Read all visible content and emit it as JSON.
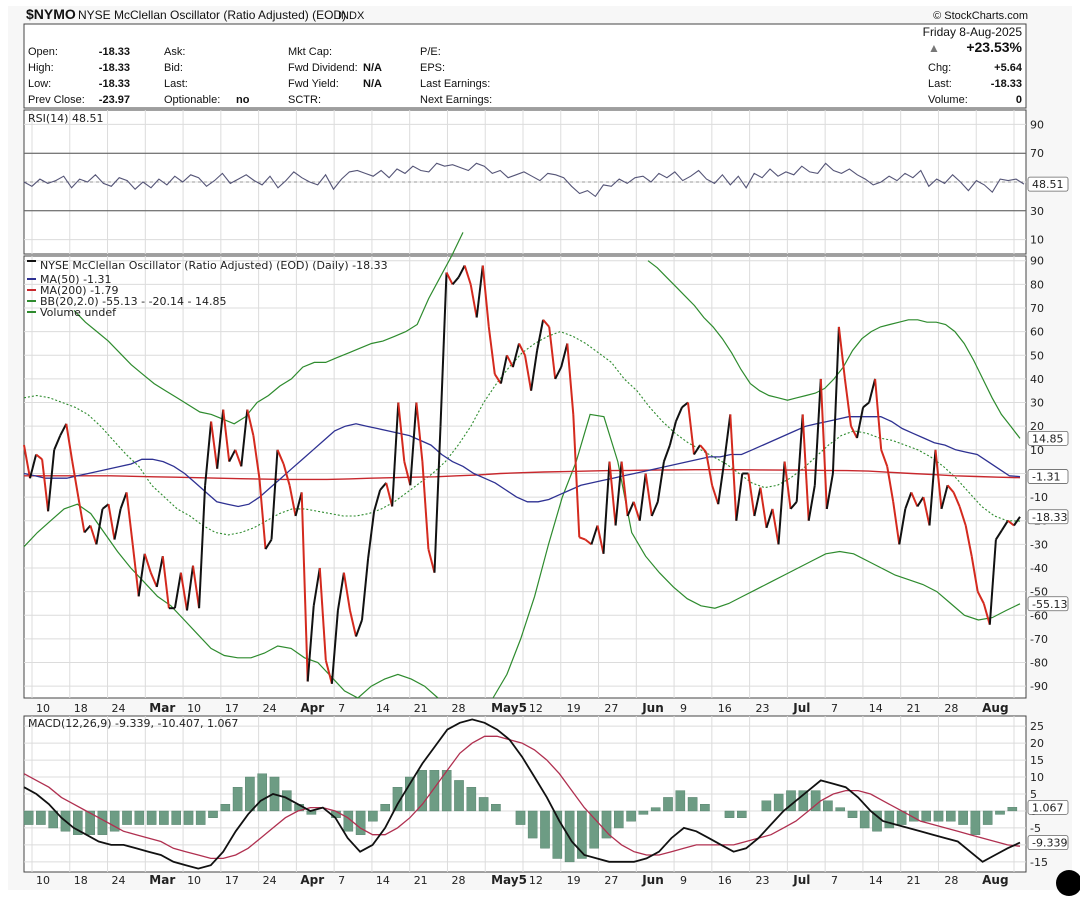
{
  "header": {
    "symbol": "$NYMO",
    "name": "NYSE McClellan Oscillator (Ratio Adjusted) (EOD)",
    "exchange": "INDX",
    "brand": "© StockCharts.com",
    "date": "Friday  8-Aug-2025",
    "change_pct": "+23.53%",
    "quote_left": [
      {
        "label": "Open:",
        "value": "-18.33"
      },
      {
        "label": "High:",
        "value": "-18.33"
      },
      {
        "label": "Low:",
        "value": "-18.33"
      },
      {
        "label": "Prev Close:",
        "value": "-23.97"
      }
    ],
    "quote_mid1": [
      {
        "label": "Ask:",
        "value": ""
      },
      {
        "label": "Bid:",
        "value": ""
      },
      {
        "label": "Last:",
        "value": ""
      },
      {
        "label": "Optionable:",
        "value": "no"
      }
    ],
    "quote_mid2": [
      {
        "label": "Mkt Cap:",
        "value": ""
      },
      {
        "label": "Fwd Dividend:",
        "value": "N/A"
      },
      {
        "label": "Fwd Yield:",
        "value": "N/A"
      },
      {
        "label": "SCTR:",
        "value": ""
      }
    ],
    "quote_mid3": [
      {
        "label": "P/E:",
        "value": ""
      },
      {
        "label": "EPS:",
        "value": ""
      },
      {
        "label": "Last Earnings:",
        "value": ""
      },
      {
        "label": "Next Earnings:",
        "value": ""
      }
    ],
    "quote_right": [
      {
        "label": "Chg:",
        "value": "+5.64"
      },
      {
        "label": "Last:",
        "value": "-18.33"
      },
      {
        "label": "Volume:",
        "value": "0"
      }
    ]
  },
  "colors": {
    "price_up": "#111111",
    "price_down": "#d42a1e",
    "ma50": "#2e3192",
    "ma200": "#c8282d",
    "bb": "#2e8b2e",
    "rsi": "#555577",
    "macd": "#111111",
    "signal": "#b03050",
    "hist": "#6d9c84",
    "grid": "#dcdcdc"
  },
  "chart_data": [
    {
      "type": "line",
      "panel": "RSI",
      "label": "RSI(14) 48.51",
      "last_value_label": "48.51",
      "ylim": [
        0,
        100
      ],
      "ticks": [
        10,
        30,
        50,
        70,
        90
      ],
      "reference_lines": [
        30,
        70
      ],
      "values": [
        50,
        47,
        52,
        49,
        51,
        54,
        46,
        52,
        50,
        55,
        49,
        47,
        53,
        51,
        45,
        50,
        46,
        52,
        48,
        54,
        50,
        55,
        53,
        47,
        51,
        56,
        49,
        52,
        55,
        51,
        48,
        54,
        46,
        51,
        57,
        53,
        50,
        48,
        55,
        45,
        52,
        57,
        58,
        56,
        54,
        58,
        53,
        59,
        56,
        61,
        58,
        57,
        63,
        61,
        62,
        60,
        58,
        63,
        61,
        56,
        58,
        53,
        55,
        57,
        54,
        51,
        56,
        55,
        53,
        47,
        42,
        44,
        40,
        48,
        47,
        52,
        49,
        53,
        54,
        50,
        56,
        53,
        57,
        51,
        54,
        58,
        52,
        49,
        55,
        48,
        54,
        46,
        56,
        53,
        59,
        54,
        57,
        55,
        61,
        57,
        56,
        63,
        58,
        56,
        59,
        55,
        52,
        48,
        50,
        54,
        51,
        56,
        53,
        58,
        47,
        52,
        49,
        55,
        50,
        44,
        51,
        48,
        43,
        52,
        51,
        52,
        48.51
      ]
    },
    {
      "type": "line",
      "panel": "price",
      "label": "NYSE McClellan Oscillator (Ratio Adjusted) (EOD) (Daily) -18.33",
      "legend": [
        {
          "text": "MA(50) -1.31",
          "color": "#2e3192"
        },
        {
          "text": "MA(200) -1.79",
          "color": "#c8282d"
        },
        {
          "text": "BB(20,2.0) -55.13 - -20.14 - 14.85",
          "color": "#2e8b2e"
        },
        {
          "text": "Volume undef",
          "color": "#2e8b2e"
        }
      ],
      "ylim": [
        -95,
        92
      ],
      "ticks": [
        -90,
        -80,
        -70,
        -60,
        -50,
        -40,
        -30,
        -20,
        -10,
        0,
        10,
        20,
        30,
        40,
        50,
        60,
        70,
        80,
        90
      ],
      "x_labels": [
        "10",
        "18",
        "24",
        "Mar",
        "10",
        "17",
        "24",
        "Apr",
        "7",
        "14",
        "21",
        "28",
        "May5",
        "12",
        "19",
        "27",
        "Jun",
        "9",
        "16",
        "23",
        "Jul",
        "7",
        "14",
        "21",
        "28",
        "Aug"
      ],
      "right_labels": [
        {
          "text": "14.85",
          "value": 14.85
        },
        {
          "text": "-1.31",
          "value": -1.31
        },
        {
          "text": "-18.33",
          "value": -18.33
        },
        {
          "text": "-55.13",
          "value": -55.13
        }
      ],
      "series": [
        {
          "name": "NYSE McClellan Oscillator (Ratio Adjusted) (EOD)",
          "values": [
            12,
            -2,
            8,
            6,
            -16,
            10,
            16,
            21,
            5,
            -10,
            -25,
            -22,
            -30,
            -15,
            -13,
            -28,
            -15,
            -8,
            -30,
            -52,
            -34,
            -42,
            -48,
            -35,
            -57,
            -57,
            -42,
            -58,
            -39,
            -57,
            -5,
            22,
            2,
            27,
            5,
            10,
            3,
            27,
            16,
            -2,
            -32,
            -28,
            10,
            4,
            -5,
            -18,
            -8,
            -88,
            -56,
            -40,
            -79,
            -89,
            -58,
            -42,
            -58,
            -69,
            -62,
            -36,
            -16,
            -7,
            -4,
            -14,
            30,
            5,
            -5,
            30,
            5,
            -32,
            -42,
            20,
            85,
            80,
            83,
            88,
            80,
            66,
            88,
            62,
            42,
            38,
            50,
            45,
            55,
            50,
            35,
            52,
            65,
            62,
            40,
            45,
            55,
            25,
            -27,
            -28,
            -30,
            -22,
            -34,
            5,
            -22,
            5,
            -18,
            -12,
            -20,
            0,
            -18,
            -12,
            5,
            12,
            22,
            28,
            30,
            8,
            12,
            9,
            -5,
            -13,
            5,
            25,
            -20,
            0,
            0,
            -18,
            -6,
            -23,
            -15,
            -30,
            5,
            -15,
            -12,
            25,
            -20,
            -5,
            40,
            -15,
            0,
            62,
            40,
            20,
            15,
            28,
            30,
            40,
            10,
            3,
            -12,
            -30,
            -15,
            -8,
            -14,
            -10,
            -22,
            10,
            -15,
            -5,
            -8,
            -14,
            -22,
            -35,
            -50,
            -55,
            -64,
            -28,
            -24,
            -20,
            -22,
            -18.33
          ]
        },
        {
          "name": "MA(50)",
          "values": [
            0,
            -1,
            -2,
            -2,
            -2,
            -1,
            0,
            1,
            2,
            3,
            4,
            6,
            6,
            5,
            3,
            0,
            -4,
            -8,
            -12,
            -13,
            -14,
            -13,
            -10,
            -6,
            -2,
            2,
            6,
            10,
            14,
            18,
            20,
            21,
            20,
            19,
            18,
            17,
            16,
            14,
            12,
            8,
            5,
            3,
            0,
            -2,
            -4,
            -7,
            -10,
            -12,
            -12,
            -11,
            -9,
            -7,
            -5,
            -4,
            -3,
            -2,
            -1,
            0,
            1,
            2,
            3,
            4,
            5,
            6,
            7,
            7,
            8,
            8,
            10,
            12,
            14,
            16,
            18,
            20,
            21,
            22,
            23,
            24,
            24,
            24,
            24,
            22,
            19,
            17,
            15,
            13,
            12,
            10,
            9,
            8,
            5,
            2,
            -1,
            -1.31
          ]
        },
        {
          "name": "MA(200)",
          "values": [
            -1,
            -1,
            -1,
            -1,
            -1,
            -1.2,
            -1.4,
            -1.6,
            -1.8,
            -2,
            -2.2,
            -2.4,
            -2.5,
            -2.5,
            -2.5,
            -2.3,
            -2,
            -1.8,
            -1.6,
            -1.4,
            -1,
            -0.6,
            0,
            0.3,
            0.6,
            0.8,
            1,
            1.2,
            1.3,
            1.4,
            1.5,
            1.6,
            1.6,
            1.6,
            1.5,
            1.4,
            1.4,
            1.3,
            1.2,
            1,
            0.5,
            0,
            -0.5,
            -1,
            -1.3,
            -1.6,
            -1.79
          ]
        },
        {
          "name": "BB Upper",
          "values": [
            69,
            64,
            60,
            56,
            51,
            46,
            42,
            38,
            35,
            32,
            29,
            26,
            25,
            23,
            21,
            24,
            30,
            33,
            37,
            40,
            45,
            47,
            47,
            49,
            51,
            53,
            55,
            56,
            58,
            60,
            63,
            74,
            83,
            92,
            102
          ]
        },
        {
          "name": "BB Upper 2",
          "values": [
            90,
            87,
            83,
            79,
            75,
            71,
            66,
            62,
            57,
            51,
            44,
            38,
            35,
            33,
            32,
            31,
            32,
            33,
            34,
            36,
            40,
            45,
            52,
            57,
            60,
            62,
            63,
            64,
            65,
            65,
            64,
            64,
            63,
            60,
            55,
            48,
            40,
            32,
            25,
            20,
            14.85
          ]
        },
        {
          "name": "BB Mid",
          "values": [
            32,
            33,
            32,
            30,
            28,
            25,
            20,
            14,
            8,
            3,
            -5,
            -10,
            -15,
            -18,
            -22,
            -25,
            -26,
            -25,
            -23,
            -20,
            -17,
            -15,
            -15,
            -16,
            -17,
            -18,
            -18,
            -17,
            -15,
            -12,
            -8,
            -4,
            0,
            5,
            12,
            20,
            30,
            38,
            45,
            51,
            55,
            58,
            60,
            58,
            55,
            51,
            47,
            40,
            35,
            28,
            22,
            17,
            13,
            10,
            7,
            4,
            0,
            -4,
            -6,
            -5,
            -2,
            2,
            7,
            12,
            16,
            18,
            17,
            15,
            14,
            12,
            10,
            7,
            3,
            -2,
            -8,
            -14,
            -18,
            -20,
            -20.14
          ]
        },
        {
          "name": "BB Lower",
          "values": [
            -31,
            -25,
            -20,
            -15,
            -13,
            -17,
            -25,
            -33,
            -40,
            -46,
            -52,
            -56,
            -62,
            -68,
            -74,
            -77,
            -78,
            -78,
            -76,
            -73,
            -74,
            -78,
            -80,
            -86,
            -92,
            -95,
            -90,
            -87,
            -85,
            -87,
            -90,
            -95
          ]
        },
        {
          "name": "BB Lower 2",
          "values": [
            -95,
            -85,
            -70,
            -52,
            -30,
            -10,
            5,
            25,
            24,
            5,
            -25,
            -35,
            -42,
            -48,
            -53,
            -56,
            -57,
            -55,
            -52,
            -49,
            -46,
            -43,
            -40,
            -37,
            -34,
            -33,
            -34,
            -37,
            -40,
            -43,
            -45,
            -47,
            -50,
            -55,
            -60,
            -62,
            -61,
            -58,
            -55.13
          ]
        }
      ]
    },
    {
      "type": "line",
      "panel": "MACD",
      "label": "MACD(12,26,9) -9.339, -10.407, 1.067",
      "ylim": [
        -18,
        28
      ],
      "ticks": [
        -15,
        -10,
        -5,
        0,
        5,
        10,
        15,
        20,
        25
      ],
      "right_labels": [
        {
          "text": "1.067",
          "value": 1.067
        },
        {
          "text": "-9.339",
          "value": -9.339
        }
      ],
      "series": [
        {
          "name": "MACD",
          "values": [
            7,
            5,
            2,
            -2,
            -5,
            -7,
            -9,
            -10,
            -10,
            -11,
            -12,
            -13,
            -15,
            -16,
            -17,
            -16,
            -12,
            -6,
            -1,
            3,
            5,
            4,
            2,
            0,
            1,
            -2,
            -8,
            -12,
            -10,
            -5,
            2,
            8,
            14,
            19,
            24,
            26,
            27,
            26,
            24,
            21,
            16,
            10,
            4,
            -3,
            -9,
            -13,
            -14,
            -15,
            -15,
            -15,
            -14,
            -12,
            -8,
            -5,
            -6,
            -8,
            -10,
            -12,
            -11,
            -8,
            -4,
            0,
            3,
            6,
            9,
            8,
            7,
            4,
            0,
            -3,
            -4,
            -5,
            -6,
            -7,
            -8,
            -9,
            -12,
            -15,
            -13,
            -11,
            -9.339
          ]
        },
        {
          "name": "Signal",
          "values": [
            11,
            9,
            7,
            4,
            2,
            0,
            -2,
            -4,
            -6,
            -7,
            -8,
            -9,
            -11,
            -12,
            -13,
            -14,
            -14,
            -13,
            -11,
            -8,
            -5,
            -2,
            0,
            1,
            1,
            0,
            -2,
            -5,
            -7,
            -7,
            -5,
            -2,
            2,
            7,
            12,
            17,
            20,
            22,
            22,
            21,
            20,
            18,
            15,
            11,
            6,
            1,
            -3,
            -7,
            -10,
            -12,
            -13,
            -13,
            -12,
            -11,
            -10,
            -10,
            -10,
            -10,
            -9,
            -8,
            -7,
            -5,
            -3,
            0,
            3,
            5,
            6,
            6,
            5,
            3,
            1,
            -1,
            -3,
            -4,
            -5,
            -6,
            -7,
            -8,
            -9,
            -10,
            -10.407
          ]
        },
        {
          "name": "Histogram",
          "values": [
            -4,
            -4,
            -5,
            -6,
            -7,
            -7,
            -7,
            -6,
            -4,
            -4,
            -4,
            -4,
            -4,
            -4,
            -4,
            -2,
            2,
            7,
            10,
            11,
            10,
            6,
            2,
            -1,
            0,
            -2,
            -6,
            -7,
            -3,
            2,
            7,
            10,
            12,
            12,
            12,
            9,
            7,
            4,
            2,
            0,
            -4,
            -8,
            -11,
            -14,
            -15,
            -14,
            -11,
            -8,
            -5,
            -3,
            -1,
            1,
            4,
            6,
            4,
            2,
            0,
            -2,
            -2,
            0,
            3,
            5,
            6,
            6,
            6,
            3,
            1,
            -2,
            -5,
            -6,
            -5,
            -4,
            -3,
            -3,
            -3,
            -3,
            -4,
            -7,
            -4,
            -1,
            1.067
          ]
        }
      ]
    }
  ]
}
